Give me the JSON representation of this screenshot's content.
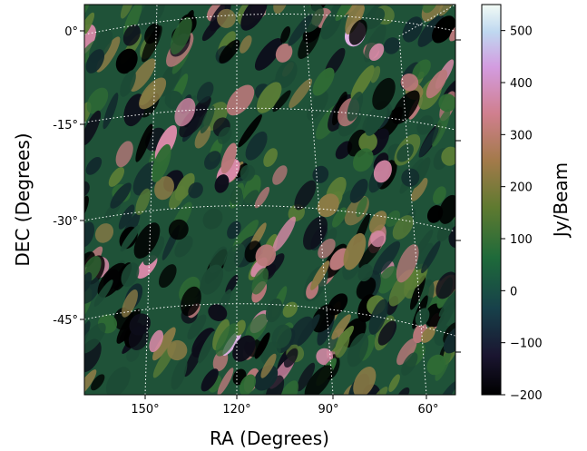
{
  "chart_data": {
    "type": "heatmap",
    "title": "",
    "xlabel": "RA (Degrees)",
    "ylabel": "DEC (Degrees)",
    "x_ticks": [
      "150°",
      "120°",
      "90°",
      "60°"
    ],
    "x_tick_values": [
      150,
      120,
      90,
      60
    ],
    "y_ticks": [
      "0°",
      "-15°",
      "-30°",
      "-45°"
    ],
    "y_tick_values": [
      0,
      -15,
      -30,
      -45
    ],
    "xlim": [
      173,
      52
    ],
    "ylim": [
      -55,
      4
    ],
    "grid": true,
    "colorbar": {
      "label": "Jy/Beam",
      "ticks": [
        "500",
        "400",
        "300",
        "200",
        "100",
        "0",
        "−100",
        "−200"
      ],
      "tick_values": [
        500,
        400,
        300,
        200,
        100,
        0,
        -100,
        -200
      ],
      "range": [
        -200,
        550
      ],
      "colormap": "cubehelix"
    }
  },
  "colors": {
    "frame": "#000000",
    "grid": "#ffffff"
  }
}
